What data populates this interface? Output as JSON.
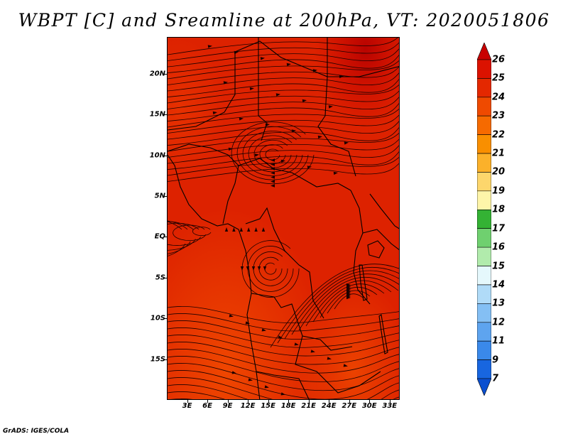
{
  "title": "WBPT [C] and Sreamline at 200hPa, VT: 2020051806",
  "credit": "GrADS: IGES/COLA",
  "map": {
    "lon_range": [
      0,
      34.5
    ],
    "lat_range": [
      -20,
      24.5
    ],
    "field_color": "#dd2200",
    "lat_labels": [
      "20N",
      "15N",
      "10N",
      "5N",
      "EQ",
      "5S",
      "10S",
      "15S"
    ],
    "lat_values": [
      20,
      15,
      10,
      5,
      0,
      -5,
      -10,
      -15
    ],
    "lon_labels": [
      "3E",
      "6E",
      "9E",
      "12E",
      "15E",
      "18E",
      "21E",
      "24E",
      "27E",
      "30E",
      "33E"
    ],
    "lon_values": [
      3,
      6,
      9,
      12,
      15,
      18,
      21,
      24,
      27,
      30,
      33
    ]
  },
  "colorbar": {
    "labels": [
      "26",
      "25",
      "24",
      "23",
      "22",
      "21",
      "20",
      "19",
      "18",
      "17",
      "16",
      "15",
      "14",
      "13",
      "12",
      "11",
      "9",
      "7"
    ],
    "colors": [
      "#c80000",
      "#db1200",
      "#e42800",
      "#ef4a00",
      "#f66a00",
      "#f98f00",
      "#fbb12a",
      "#fdd66c",
      "#fef5a9",
      "#34b234",
      "#6fd06f",
      "#b1ebac",
      "#e5f8fc",
      "#b0dbf8",
      "#84bff4",
      "#5ea4ef",
      "#3a89ea",
      "#1866e0",
      "#0a4fd0"
    ]
  }
}
